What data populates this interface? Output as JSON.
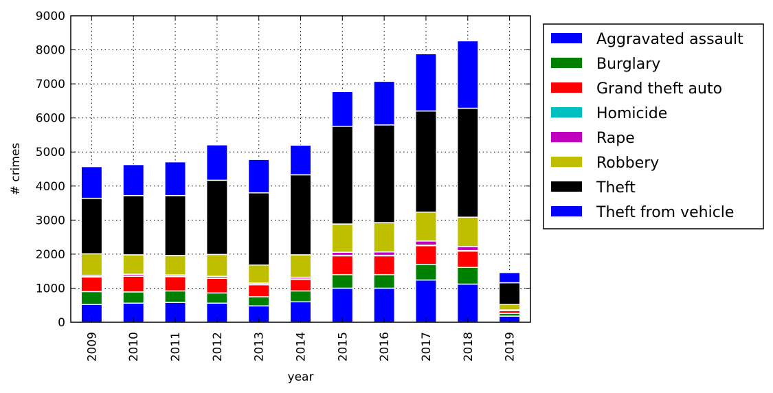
{
  "chart_data": {
    "type": "bar",
    "stacked": true,
    "title": "",
    "xlabel": "year",
    "ylabel": "# crimes",
    "ylim": [
      0,
      9000
    ],
    "yticks": [
      0,
      1000,
      2000,
      3000,
      4000,
      5000,
      6000,
      7000,
      8000,
      9000
    ],
    "grid": true,
    "legend_position": "outside-right",
    "categories": [
      "2009",
      "2010",
      "2011",
      "2012",
      "2013",
      "2014",
      "2015",
      "2016",
      "2017",
      "2018",
      "2019"
    ],
    "series": [
      {
        "name": "Aggravated assault",
        "color": "#0000ff",
        "values": [
          520,
          560,
          580,
          560,
          480,
          600,
          1000,
          1000,
          1240,
          1120,
          180
        ]
      },
      {
        "name": "Burglary",
        "color": "#008000",
        "values": [
          380,
          330,
          340,
          300,
          270,
          320,
          400,
          400,
          460,
          490,
          80
        ]
      },
      {
        "name": "Grand theft auto",
        "color": "#ff0000",
        "values": [
          430,
          460,
          420,
          430,
          350,
          340,
          550,
          550,
          550,
          480,
          80
        ]
      },
      {
        "name": "Homicide",
        "color": "#00bfbf",
        "values": [
          10,
          10,
          10,
          10,
          10,
          10,
          15,
          15,
          15,
          15,
          5
        ]
      },
      {
        "name": "Rape",
        "color": "#bf00bf",
        "values": [
          40,
          50,
          40,
          50,
          40,
          50,
          90,
          100,
          120,
          120,
          15
        ]
      },
      {
        "name": "Robbery",
        "color": "#bfbf00",
        "values": [
          630,
          570,
          570,
          640,
          530,
          660,
          830,
          860,
          850,
          860,
          160
        ]
      },
      {
        "name": "Theft",
        "color": "#000000",
        "values": [
          1630,
          1740,
          1760,
          2180,
          2120,
          2350,
          2870,
          2870,
          2970,
          3200,
          640
        ]
      },
      {
        "name": "Theft from vehicle",
        "color": "#0000ff",
        "values": [
          930,
          910,
          990,
          1040,
          980,
          870,
          1020,
          1280,
          1680,
          1980,
          300
        ]
      }
    ]
  }
}
